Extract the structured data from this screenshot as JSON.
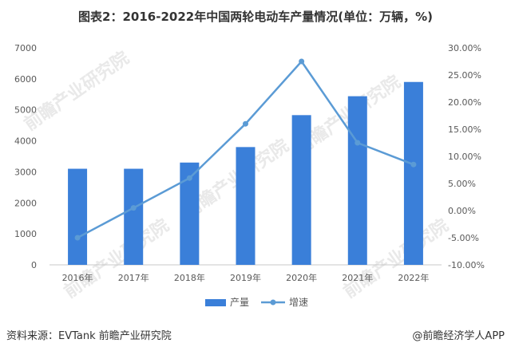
{
  "title": "图表2：2016-2022年中国两轮电动车产量情况(单位：万辆，%)",
  "source": "资料来源：EVTank 前瞻产业研究院",
  "publisher": "@前瞻经济学人APP",
  "watermark": "前瞻产业研究院",
  "colors": {
    "bar": "#3a7fd9",
    "line": "#5b9bd5",
    "axis": "#c8c8c8",
    "text": "#595959"
  },
  "chart_data": {
    "type": "bar",
    "categories": [
      "2016年",
      "2017年",
      "2018年",
      "2019年",
      "2020年",
      "2021年",
      "2022年"
    ],
    "series": [
      {
        "name": "产量",
        "type": "bar",
        "axis": "left",
        "values": [
          3100,
          3100,
          3300,
          3800,
          4830,
          5440,
          5900
        ]
      },
      {
        "name": "增速",
        "type": "line",
        "axis": "right",
        "values": [
          -5.0,
          0.5,
          6.0,
          16.0,
          27.5,
          12.5,
          8.5
        ]
      }
    ],
    "y_left": {
      "min": 0,
      "max": 7000,
      "ticks": [
        0,
        1000,
        2000,
        3000,
        4000,
        5000,
        6000,
        7000
      ]
    },
    "y_right": {
      "min": -10,
      "max": 30,
      "ticks": [
        "-10.00%",
        "-5.00%",
        "0.00%",
        "5.00%",
        "10.00%",
        "15.00%",
        "20.00%",
        "25.00%",
        "30.00%"
      ]
    },
    "legend_position": "bottom",
    "grid": false
  }
}
